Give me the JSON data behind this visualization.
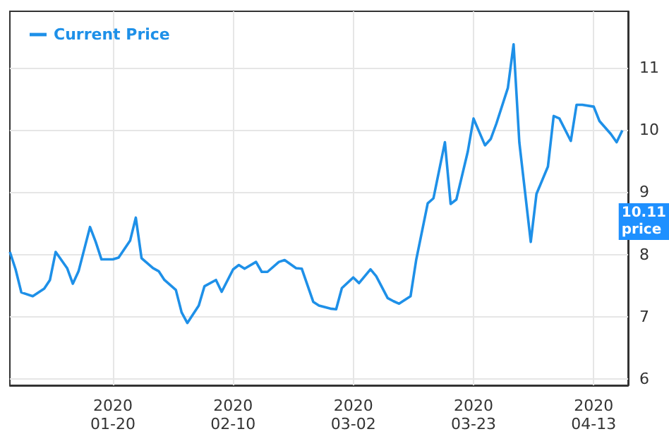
{
  "chart_data": {
    "type": "line",
    "x": [
      "2020-01-02",
      "2020-01-03",
      "2020-01-04",
      "2020-01-06",
      "2020-01-08",
      "2020-01-09",
      "2020-01-10",
      "2020-01-12",
      "2020-01-13",
      "2020-01-14",
      "2020-01-16",
      "2020-01-17",
      "2020-01-18",
      "2020-01-20",
      "2020-01-21",
      "2020-01-23",
      "2020-01-24",
      "2020-01-25",
      "2020-01-27",
      "2020-01-28",
      "2020-01-29",
      "2020-01-31",
      "2020-02-01",
      "2020-02-02",
      "2020-02-04",
      "2020-02-05",
      "2020-02-07",
      "2020-02-08",
      "2020-02-10",
      "2020-02-11",
      "2020-02-12",
      "2020-02-14",
      "2020-02-15",
      "2020-02-16",
      "2020-02-18",
      "2020-02-19",
      "2020-02-21",
      "2020-02-22",
      "2020-02-24",
      "2020-02-25",
      "2020-02-27",
      "2020-02-28",
      "2020-02-29",
      "2020-03-02",
      "2020-03-03",
      "2020-03-05",
      "2020-03-06",
      "2020-03-08",
      "2020-03-09",
      "2020-03-10",
      "2020-03-12",
      "2020-03-13",
      "2020-03-15",
      "2020-03-16",
      "2020-03-18",
      "2020-03-19",
      "2020-03-20",
      "2020-03-22",
      "2020-03-23",
      "2020-03-25",
      "2020-03-26",
      "2020-03-27",
      "2020-03-29",
      "2020-03-30",
      "2020-03-31",
      "2020-04-02",
      "2020-04-03",
      "2020-04-05",
      "2020-04-06",
      "2020-04-07",
      "2020-04-09",
      "2020-04-10",
      "2020-04-11",
      "2020-04-13",
      "2020-04-14",
      "2020-04-16",
      "2020-04-17",
      "2020-04-18"
    ],
    "series": [
      {
        "name": "Current Price",
        "color": "#1e90e8",
        "values": [
          8.04,
          7.76,
          7.39,
          7.33,
          7.45,
          7.59,
          8.04,
          7.78,
          7.53,
          7.73,
          8.44,
          8.2,
          7.92,
          7.92,
          7.95,
          8.22,
          8.59,
          7.94,
          7.78,
          7.73,
          7.59,
          7.43,
          7.07,
          6.9,
          7.18,
          7.49,
          7.59,
          7.4,
          7.76,
          7.83,
          7.77,
          7.88,
          7.72,
          7.72,
          7.88,
          7.91,
          7.78,
          7.77,
          7.24,
          7.18,
          7.13,
          7.12,
          7.46,
          7.63,
          7.54,
          7.76,
          7.65,
          7.3,
          7.25,
          7.21,
          7.33,
          7.92,
          8.82,
          8.9,
          9.8,
          8.81,
          8.88,
          9.65,
          10.18,
          9.75,
          9.85,
          10.1,
          10.67,
          11.37,
          9.8,
          8.2,
          8.97,
          9.41,
          10.22,
          10.18,
          9.82,
          10.4,
          10.4,
          10.37,
          10.14,
          9.93,
          9.8,
          9.99
        ]
      }
    ],
    "xlim": [
      "2020-01-02",
      "2020-04-19"
    ],
    "xticks": [
      {
        "value": "2020-01-20",
        "label": "2020\n01-20"
      },
      {
        "value": "2020-02-10",
        "label": "2020\n02-10"
      },
      {
        "value": "2020-03-02",
        "label": "2020\n03-02"
      },
      {
        "value": "2020-03-23",
        "label": "2020\n03-23"
      },
      {
        "value": "2020-04-13",
        "label": "2020\n04-13"
      }
    ],
    "ylim": [
      5.9,
      11.9
    ],
    "yticks": [
      6,
      7,
      8,
      9,
      10,
      11
    ],
    "grid": true,
    "legend": "top left",
    "marker": "none",
    "line_style": "solid",
    "annotations": [
      "10.11\nprice"
    ]
  }
}
